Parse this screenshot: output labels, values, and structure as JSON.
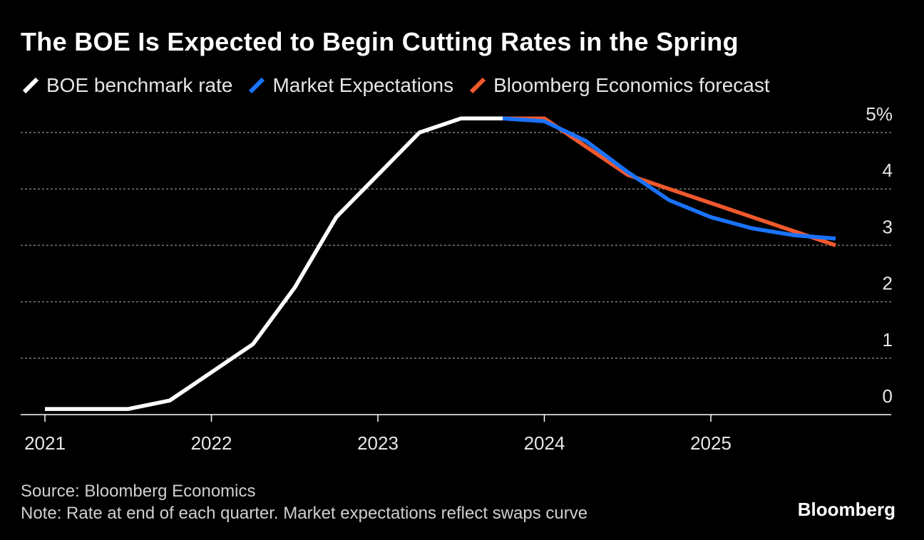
{
  "title": "The BOE Is Expected to Begin Cutting Rates in the Spring",
  "legend": [
    {
      "label": "BOE benchmark rate",
      "color": "#ffffff"
    },
    {
      "label": "Market Expectations",
      "color": "#1a73ff"
    },
    {
      "label": "Bloomberg Economics forecast",
      "color": "#f0592d"
    }
  ],
  "footer": {
    "source": "Source: Bloomberg Economics",
    "note": "Note: Rate at end of each quarter. Market expectations reflect swaps curve"
  },
  "brand": "Bloomberg",
  "chart_data": {
    "type": "line",
    "ylabel": "",
    "xlabel": "",
    "x_ticks": [
      "2021",
      "2022",
      "2023",
      "2024",
      "2025"
    ],
    "y_ticks": [
      "0",
      "1",
      "2",
      "3",
      "4",
      "5%"
    ],
    "ylim": [
      0,
      5.25
    ],
    "grid": "horizontal dotted",
    "legend_position": "top-left",
    "series": [
      {
        "name": "BOE benchmark rate",
        "color": "#ffffff",
        "points": [
          [
            "2021Q1",
            0.1
          ],
          [
            "2021Q2",
            0.1
          ],
          [
            "2021Q3",
            0.1
          ],
          [
            "2021Q4",
            0.25
          ],
          [
            "2022Q1",
            0.75
          ],
          [
            "2022Q2",
            1.25
          ],
          [
            "2022Q3",
            2.25
          ],
          [
            "2022Q4",
            3.5
          ],
          [
            "2023Q1",
            4.25
          ],
          [
            "2023Q2",
            5.0
          ],
          [
            "2023Q3",
            5.25
          ],
          [
            "2023Q4",
            5.25
          ]
        ]
      },
      {
        "name": "Market Expectations",
        "color": "#1a73ff",
        "points": [
          [
            "2023Q4",
            5.25
          ],
          [
            "2024Q1",
            5.2
          ],
          [
            "2024Q2",
            4.85
          ],
          [
            "2024Q3",
            4.3
          ],
          [
            "2024Q4",
            3.8
          ],
          [
            "2025Q1",
            3.5
          ],
          [
            "2025Q2",
            3.3
          ],
          [
            "2025Q3",
            3.18
          ],
          [
            "2025Q4",
            3.12
          ]
        ]
      },
      {
        "name": "Bloomberg Economics forecast",
        "color": "#f0592d",
        "points": [
          [
            "2023Q4",
            5.25
          ],
          [
            "2024Q1",
            5.25
          ],
          [
            "2024Q2",
            4.75
          ],
          [
            "2024Q3",
            4.25
          ],
          [
            "2024Q4",
            4.0
          ],
          [
            "2025Q1",
            3.75
          ],
          [
            "2025Q2",
            3.5
          ],
          [
            "2025Q3",
            3.25
          ],
          [
            "2025Q4",
            3.0
          ]
        ]
      }
    ]
  }
}
